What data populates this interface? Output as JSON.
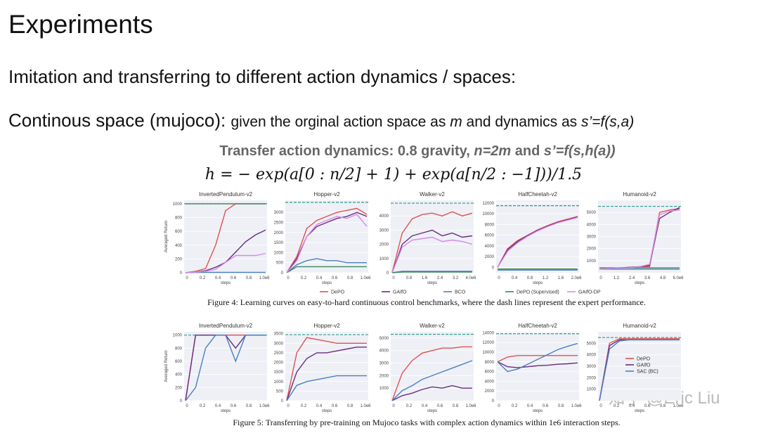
{
  "slide": {
    "title": "Experiments",
    "subheading": "Imitation and transferring to different action dynamics / spaces:",
    "line3": {
      "lead": "Continous space (mujoco):",
      "parts": [
        "given the orginal action space as ",
        "m",
        " and dynamics as ",
        "s’=f(s,a)"
      ]
    },
    "subtitle": {
      "parts": [
        "Transfer action dynamics: 0.8 gravity, ",
        "n=2m",
        " and ",
        "s’=f(s,h(a))"
      ]
    },
    "formula": "h = − exp(a[0 : n/2] + 1) + exp(a[n/2 : −1]))/1.5",
    "watermark": "知乎 @Eric Liu"
  },
  "figures": [
    {
      "caption": "Figure 4: Learning curves on easy-to-hard continuous control benchmarks, where the dash lines represent the expert performance.",
      "y_label": "Averaged Return",
      "x_label": "steps",
      "legend": [
        {
          "name": "DePO",
          "color": "#e0524f"
        },
        {
          "name": "GAIfO",
          "color": "#6a2c7e"
        },
        {
          "name": "BCO",
          "color": "#4a7fc1"
        },
        {
          "name": "DePO (Supervised)",
          "color": "#3a8a5a"
        },
        {
          "name": "GAIfO-DP",
          "color": "#d58ae6"
        }
      ],
      "panels": [
        {
          "title": "InvertedPendulum-v2",
          "ylim": [
            0,
            1050
          ],
          "yticks": [
            0,
            200,
            400,
            600,
            800,
            1000
          ],
          "xticks": [
            "0",
            "0.2",
            "0.4",
            "0.6",
            "0.8",
            "1.0e6"
          ],
          "expert": 1000,
          "series": [
            [
              0,
              20,
              60,
              400,
              900,
              1000,
              1000,
              1000,
              1000
            ],
            [
              0,
              10,
              30,
              80,
              150,
              300,
              450,
              550,
              620
            ],
            [
              0,
              5,
              5,
              5,
              5,
              5,
              5,
              5,
              5
            ],
            [
              1000,
              1000,
              1000,
              1000,
              1000,
              1000,
              1000,
              1000,
              1000
            ],
            [
              0,
              10,
              20,
              50,
              150,
              250,
              250,
              250,
              280
            ]
          ]
        },
        {
          "title": "Hopper-v2",
          "ylim": [
            0,
            3600
          ],
          "yticks": [
            0,
            500,
            1000,
            1500,
            2000,
            2500,
            3000
          ],
          "xticks": [
            "0",
            "0.2",
            "0.4",
            "0.6",
            "0.8",
            "1.0e6"
          ],
          "expert": 3500,
          "series": [
            [
              0,
              800,
              2200,
              2600,
              2800,
              3000,
              3100,
              3200,
              2900
            ],
            [
              0,
              700,
              1800,
              2300,
              2500,
              2700,
              2800,
              3000,
              2800
            ],
            [
              0,
              400,
              600,
              700,
              600,
              600,
              500,
              500,
              500
            ],
            [
              0,
              300,
              300,
              300,
              300,
              300,
              300,
              300,
              300
            ],
            [
              0,
              600,
              1800,
              2400,
              2600,
              2800,
              2700,
              2900,
              2300
            ]
          ]
        },
        {
          "title": "Walker-v2",
          "ylim": [
            0,
            5100
          ],
          "yticks": [
            0,
            1000,
            2000,
            3000,
            4000
          ],
          "xticks": [
            "0",
            "0.8",
            "1.6",
            "2.4",
            "3.2",
            "4.0e6"
          ],
          "expert": 4900,
          "series": [
            [
              0,
              2800,
              3800,
              4100,
              4200,
              4000,
              4300,
              4000,
              4200
            ],
            [
              0,
              2000,
              2600,
              2800,
              3000,
              2600,
              2800,
              2500,
              2600
            ],
            [
              0,
              100,
              100,
              100,
              100,
              100,
              100,
              100,
              100
            ],
            [
              0,
              50,
              50,
              50,
              50,
              50,
              50,
              50,
              50
            ],
            [
              0,
              1800,
              2300,
              2400,
              2500,
              2200,
              2300,
              2200,
              2000
            ]
          ]
        },
        {
          "title": "HalfCheetah-v2",
          "ylim": [
            -1000,
            12500
          ],
          "yticks": [
            0,
            2000,
            4000,
            6000,
            8000,
            10000,
            12000
          ],
          "xticks": [
            "0",
            "0.4",
            "0.8",
            "1.2",
            "1.6",
            "2.0e6"
          ],
          "expert": 11500,
          "series": [
            [
              0,
              3500,
              5000,
              6000,
              7000,
              7800,
              8500,
              9000,
              9500
            ],
            [
              0,
              3300,
              4800,
              5900,
              6900,
              7700,
              8400,
              8900,
              9400
            ],
            [
              -500,
              -500,
              -500,
              -500,
              -500,
              -500,
              -500,
              -500,
              -500
            ],
            [
              -300,
              -300,
              -300,
              -300,
              -300,
              -300,
              -300,
              -300,
              -300
            ],
            [
              0,
              3000,
              4600,
              5800,
              6800,
              7600,
              8300,
              8800,
              9300
            ]
          ]
        },
        {
          "title": "Humanoid-v2",
          "ylim": [
            0,
            6000
          ],
          "yticks": [
            1000,
            2000,
            3000,
            4000,
            5000
          ],
          "xticks": [
            "0",
            "1.2",
            "2.4",
            "3.6",
            "4.8",
            "6.0e6"
          ],
          "expert": 5500,
          "series": [
            [
              300,
              400,
              400,
              450,
              500,
              500,
              5000,
              5200,
              5300
            ],
            [
              300,
              350,
              400,
              450,
              500,
              600,
              4500,
              5000,
              5400
            ],
            [
              300,
              300,
              300,
              300,
              300,
              300,
              300,
              300,
              300
            ],
            [
              400,
              400,
              400,
              400,
              400,
              400,
              400,
              400,
              400
            ],
            [
              300,
              350,
              400,
              400,
              500,
              700,
              4800,
              5100,
              5200
            ]
          ]
        }
      ]
    },
    {
      "caption": "Figure 5: Transferring by pre-training on Mujoco tasks with complex action dynamics within 1e6 interaction steps.",
      "y_label": "Averaged Return",
      "x_label": "steps",
      "legend": [
        {
          "name": "DePO",
          "color": "#e0524f"
        },
        {
          "name": "GAIfO",
          "color": "#6a2c7e"
        },
        {
          "name": "SAC (BC)",
          "color": "#4a7fc1"
        }
      ],
      "panels": [
        {
          "title": "InvertedPendulum-v2",
          "ylim": [
            0,
            1050
          ],
          "yticks": [
            0,
            200,
            400,
            600,
            800,
            1000
          ],
          "xticks": [
            "0",
            "0.2",
            "0.4",
            "0.6",
            "0.8",
            "1.0e6"
          ],
          "expert": 1000,
          "series": [
            [
              0,
              1000,
              1000,
              1000,
              1000,
              1000,
              1000,
              1000,
              1000
            ],
            [
              0,
              1000,
              1000,
              1000,
              1000,
              800,
              1000,
              1000,
              1000
            ],
            [
              0,
              200,
              800,
              1000,
              1000,
              600,
              1000,
              1000,
              1000
            ]
          ]
        },
        {
          "title": "Hopper-v2",
          "ylim": [
            0,
            3600
          ],
          "yticks": [
            0,
            500,
            1000,
            1500,
            2000,
            2500,
            3000,
            3500
          ],
          "xticks": [
            "0",
            "0.2",
            "0.4",
            "0.6",
            "0.8",
            "1.0e6"
          ],
          "expert": 3450,
          "series": [
            [
              0,
              2500,
              3300,
              3200,
              3100,
              3000,
              3000,
              3000,
              3000
            ],
            [
              0,
              1500,
              2200,
              2500,
              2500,
              2600,
              2700,
              2800,
              2800
            ],
            [
              0,
              800,
              1000,
              1100,
              1200,
              1300,
              1300,
              1300,
              1300
            ]
          ]
        },
        {
          "title": "Walker-v2",
          "ylim": [
            0,
            5500
          ],
          "yticks": [
            1000,
            2000,
            3000,
            4000,
            5000
          ],
          "xticks": [
            "0",
            "0.2",
            "0.4",
            "0.6",
            "0.8",
            "1.0e6"
          ],
          "expert": 5300,
          "series": [
            [
              0,
              2200,
              3200,
              3800,
              4000,
              4200,
              4200,
              4300,
              4300
            ],
            [
              0,
              400,
              600,
              900,
              1100,
              1000,
              1200,
              1000,
              1000
            ],
            [
              0,
              800,
              1200,
              1700,
              2000,
              2300,
              2600,
              2900,
              3200
            ]
          ]
        },
        {
          "title": "HalfCheetah-v2",
          "ylim": [
            0,
            14200
          ],
          "yticks": [
            0,
            2000,
            4000,
            6000,
            8000,
            10000,
            12000,
            14000
          ],
          "xticks": [
            "0",
            "0.2",
            "0.4",
            "0.6",
            "0.8",
            "1.0e6"
          ],
          "expert": 13800,
          "series": [
            [
              8000,
              9000,
              9300,
              9300,
              9300,
              9300,
              9300,
              9300,
              9300
            ],
            [
              8000,
              7000,
              6800,
              7000,
              7200,
              7300,
              7500,
              7600,
              7800
            ],
            [
              8000,
              6000,
              6500,
              7500,
              8500,
              9500,
              10500,
              11200,
              11800
            ]
          ]
        },
        {
          "title": "Humanoid-v2",
          "ylim": [
            0,
            6000
          ],
          "yticks": [
            1000,
            2000,
            3000,
            4000,
            5000
          ],
          "xticks": [
            "0",
            "0.2",
            "0.4",
            "0.6",
            "0.8",
            "1.0e6"
          ],
          "expert": 5500,
          "series": [
            [
              0,
              5000,
              5400,
              5400,
              5400,
              5400,
              5400,
              5400,
              5400
            ],
            [
              0,
              4800,
              5300,
              5300,
              5300,
              5300,
              5300,
              5300,
              5300
            ],
            [
              0,
              4500,
              5200,
              5300,
              5300,
              5300,
              5300,
              5300,
              5300
            ]
          ]
        }
      ]
    }
  ]
}
